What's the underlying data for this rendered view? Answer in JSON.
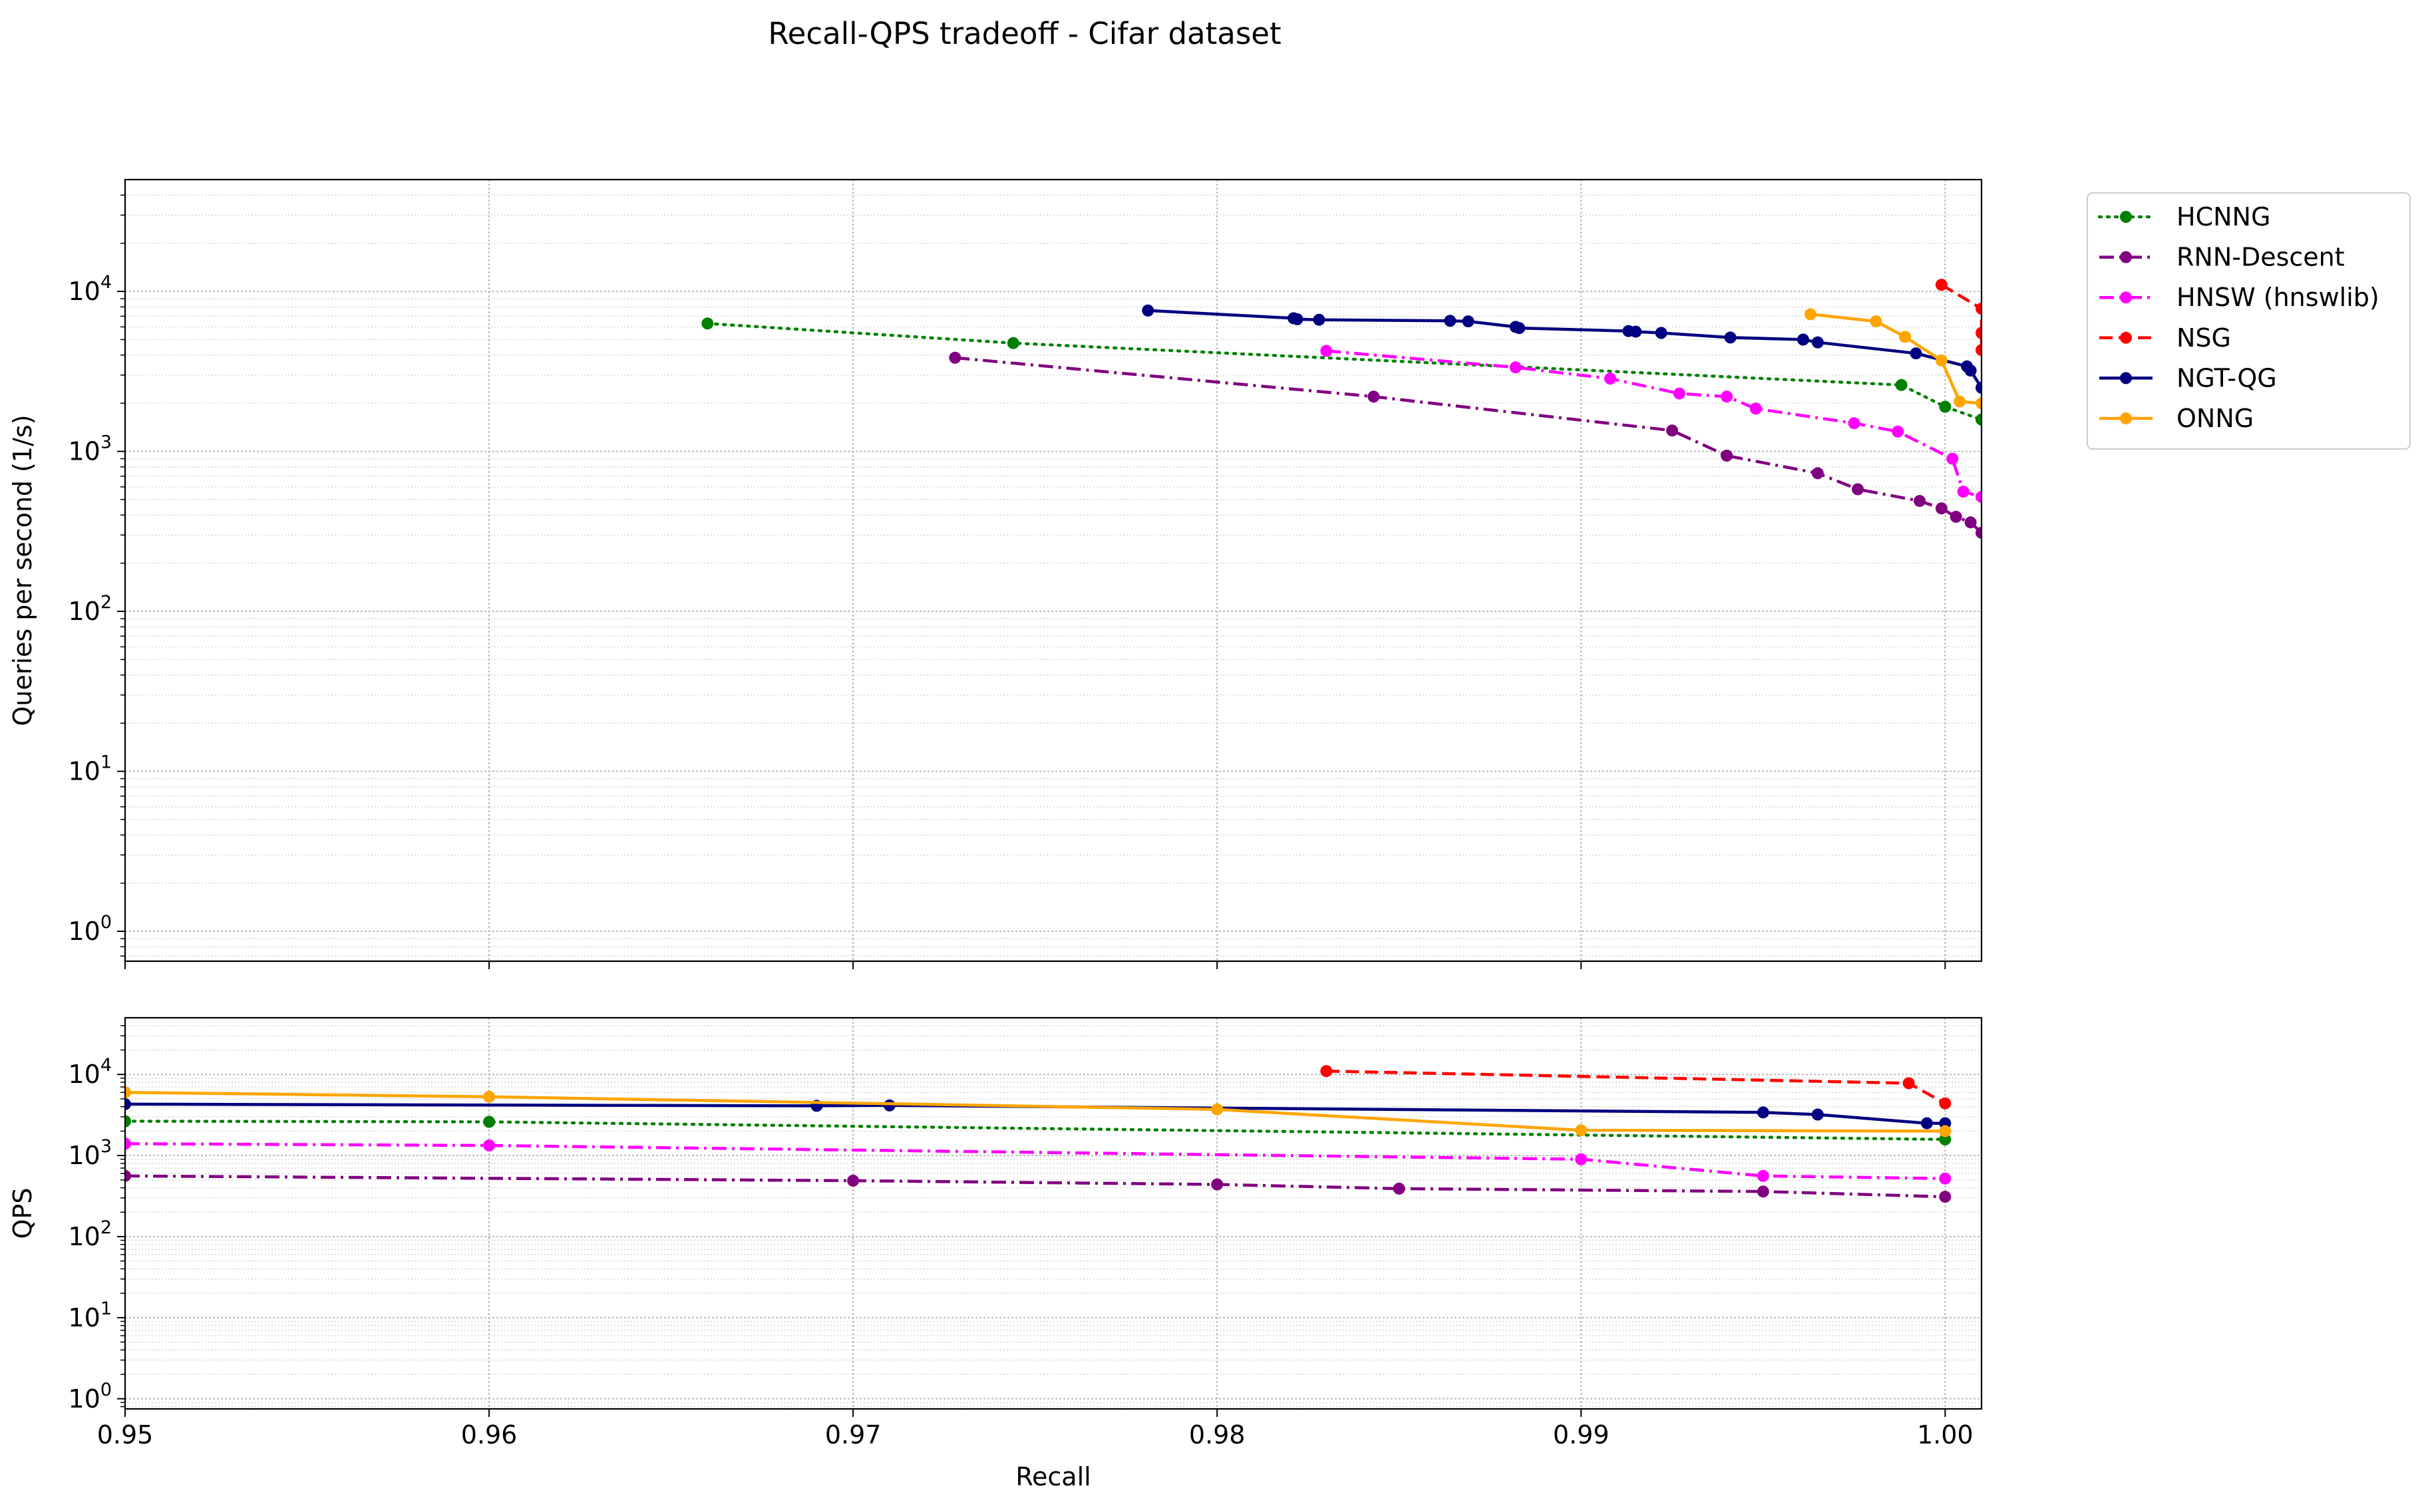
{
  "chart_data": {
    "type": "line",
    "title": "Recall-QPS tradeoff - Cifar dataset",
    "xlabel": "Recall",
    "legend_position": "outside-top-right",
    "grid": true,
    "xlim": [
      0.95,
      1.001
    ],
    "x_ticks": [
      "0.95",
      "0.96",
      "0.97",
      "0.98",
      "0.99",
      "1.00"
    ],
    "y_tick_mantissa": "10",
    "y_tick_exponents": [
      "0",
      "1",
      "2",
      "3",
      "4"
    ],
    "panels": [
      {
        "ylabel": "Queries per second (1/s)",
        "yscale": "log",
        "ylim": [
          0.65,
          50000
        ],
        "show_xticklabels": false
      },
      {
        "ylabel": "QPS",
        "yscale": "log",
        "ylim": [
          0.75,
          50000
        ],
        "show_xticklabels": true
      }
    ],
    "series": [
      {
        "name": "HCNNG",
        "color": "#008000",
        "dash": "dotted",
        "main": [
          [
            0.966,
            6300
          ],
          [
            0.9744,
            4750
          ],
          [
            0.9988,
            2600
          ],
          [
            1.0,
            1900
          ],
          [
            1.001,
            1580
          ]
        ],
        "zoom": [
          [
            0.95,
            2650
          ],
          [
            0.96,
            2600
          ],
          [
            1.0,
            1580
          ]
        ]
      },
      {
        "name": "RNN-Descent",
        "color": "#800080",
        "dash": "dashdot",
        "main": [
          [
            0.9728,
            3850
          ],
          [
            0.9843,
            2200
          ],
          [
            0.9925,
            1350
          ],
          [
            0.994,
            940
          ],
          [
            0.9965,
            730
          ],
          [
            0.9976,
            580
          ],
          [
            0.9993,
            490
          ],
          [
            0.9999,
            440
          ],
          [
            1.0003,
            390
          ],
          [
            1.0007,
            360
          ],
          [
            1.001,
            310
          ]
        ],
        "zoom": [
          [
            0.95,
            560
          ],
          [
            0.97,
            490
          ],
          [
            0.98,
            440
          ],
          [
            0.985,
            390
          ],
          [
            0.995,
            360
          ],
          [
            1.0,
            310
          ]
        ]
      },
      {
        "name": "HNSW (hnswlib)",
        "color": "#FF00FF",
        "dash": "dashdot",
        "main": [
          [
            0.983,
            4250
          ],
          [
            0.9882,
            3350
          ],
          [
            0.9908,
            2850
          ],
          [
            0.9927,
            2300
          ],
          [
            0.994,
            2200
          ],
          [
            0.9948,
            1850
          ],
          [
            0.9975,
            1500
          ],
          [
            0.9987,
            1330
          ],
          [
            1.0002,
            900
          ],
          [
            1.0005,
            560
          ],
          [
            1.001,
            520
          ]
        ],
        "zoom": [
          [
            0.95,
            1400
          ],
          [
            0.96,
            1330
          ],
          [
            0.99,
            900
          ],
          [
            0.995,
            560
          ],
          [
            1.0,
            520
          ]
        ]
      },
      {
        "name": "NSG",
        "color": "#FF0000",
        "dash": "dashed",
        "main": [
          [
            0.9999,
            11000
          ],
          [
            1.001,
            7800
          ],
          [
            1.001,
            4300
          ],
          [
            1.001,
            5500
          ]
        ],
        "zoom": [
          [
            0.983,
            11000
          ],
          [
            0.999,
            7800
          ],
          [
            1.0,
            4400
          ]
        ]
      },
      {
        "name": "NGT-QG",
        "color": "#000080",
        "dash": "solid",
        "main": [
          [
            0.9781,
            7600
          ],
          [
            0.9821,
            6800
          ],
          [
            0.9822,
            6700
          ],
          [
            0.9828,
            6650
          ],
          [
            0.9864,
            6550
          ],
          [
            0.9869,
            6500
          ],
          [
            0.9882,
            6000
          ],
          [
            0.9883,
            5900
          ],
          [
            0.9913,
            5650
          ],
          [
            0.9915,
            5600
          ],
          [
            0.9922,
            5500
          ],
          [
            0.9941,
            5150
          ],
          [
            0.9961,
            5000
          ],
          [
            0.9965,
            4800
          ],
          [
            0.9992,
            4100
          ],
          [
            1.0006,
            3400
          ],
          [
            1.0007,
            3200
          ],
          [
            1.001,
            2500
          ]
        ],
        "zoom": [
          [
            0.95,
            4300
          ],
          [
            0.969,
            4100
          ],
          [
            0.971,
            4150
          ],
          [
            0.995,
            3400
          ],
          [
            0.9965,
            3200
          ],
          [
            0.9995,
            2500
          ],
          [
            1.0,
            2500
          ]
        ]
      },
      {
        "name": "ONNG",
        "color": "#FFA500",
        "dash": "solid",
        "main": [
          [
            0.9963,
            7200
          ],
          [
            0.9981,
            6500
          ],
          [
            0.9989,
            5200
          ],
          [
            0.9999,
            3700
          ],
          [
            1.0004,
            2050
          ],
          [
            1.001,
            2000
          ]
        ],
        "zoom": [
          [
            0.95,
            6000
          ],
          [
            0.96,
            5300
          ],
          [
            0.98,
            3700
          ],
          [
            0.99,
            2050
          ],
          [
            1.0,
            2000
          ]
        ]
      }
    ]
  }
}
